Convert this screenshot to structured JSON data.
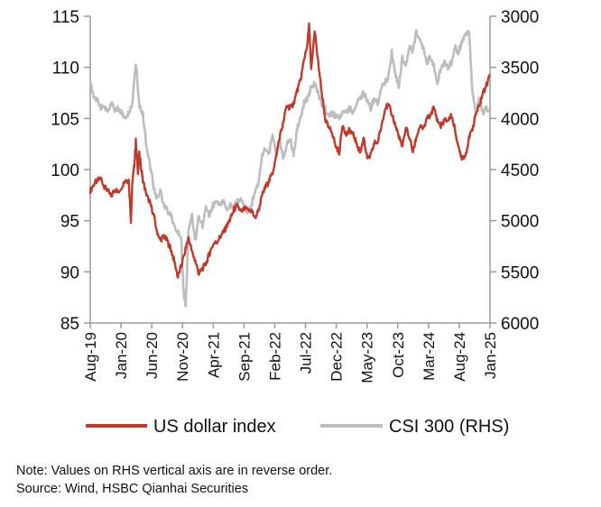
{
  "chart_data": {
    "type": "line",
    "title": "",
    "x_ticks": [
      "Aug-19",
      "Jan-20",
      "Jun-20",
      "Nov-20",
      "Apr-21",
      "Sep-21",
      "Feb-22",
      "Jul-22",
      "Dec-22",
      "May-23",
      "Oct-23",
      "Mar-24",
      "Aug-24",
      "Jan-25"
    ],
    "y_left": {
      "min": 85,
      "max": 115,
      "ticks": [
        85,
        90,
        95,
        100,
        105,
        110,
        115
      ]
    },
    "y_right": {
      "min": 3000,
      "max": 6000,
      "reversed": true,
      "ticks": [
        3000,
        3500,
        4000,
        4500,
        5000,
        5500,
        6000
      ]
    },
    "series": [
      {
        "name": "US dollar index",
        "axis": "left",
        "color": "#c0392b",
        "points": [
          [
            0,
            97.9
          ],
          [
            0.5,
            98.6
          ],
          [
            1,
            98.9
          ],
          [
            1.5,
            99.2
          ],
          [
            2,
            98.3
          ],
          [
            2.5,
            97.9
          ],
          [
            3,
            97.4
          ],
          [
            3.5,
            98.1
          ],
          [
            4,
            97.8
          ],
          [
            4.5,
            98.4
          ],
          [
            5,
            99.0
          ],
          [
            5.5,
            98.9
          ],
          [
            5.8,
            95.0
          ],
          [
            6,
            98.8
          ],
          [
            6.3,
            100.5
          ],
          [
            6.5,
            102.8
          ],
          [
            6.8,
            99.8
          ],
          [
            7,
            101.5
          ],
          [
            7.3,
            100.0
          ],
          [
            7.5,
            99.0
          ],
          [
            8,
            97.5
          ],
          [
            8.5,
            96.8
          ],
          [
            9,
            95.7
          ],
          [
            9.5,
            94.0
          ],
          [
            10,
            93.1
          ],
          [
            10.5,
            93.5
          ],
          [
            11,
            93.0
          ],
          [
            11.5,
            92.2
          ],
          [
            12,
            91.0
          ],
          [
            12.5,
            89.5
          ],
          [
            13,
            90.6
          ],
          [
            13.5,
            92.0
          ],
          [
            14,
            93.4
          ],
          [
            14.5,
            92.0
          ],
          [
            15,
            91.0
          ],
          [
            15.5,
            89.8
          ],
          [
            16,
            90.3
          ],
          [
            16.5,
            90.8
          ],
          [
            17,
            91.8
          ],
          [
            17.5,
            92.7
          ],
          [
            18,
            92.9
          ],
          [
            18.5,
            93.4
          ],
          [
            19,
            93.9
          ],
          [
            19.5,
            94.5
          ],
          [
            20,
            95.2
          ],
          [
            20.5,
            96.1
          ],
          [
            21,
            96.5
          ],
          [
            21.5,
            95.8
          ],
          [
            22,
            96.2
          ],
          [
            22.5,
            96.0
          ],
          [
            23,
            96.0
          ],
          [
            23.5,
            95.3
          ],
          [
            24,
            96.0
          ],
          [
            24.5,
            97.5
          ],
          [
            25,
            98.3
          ],
          [
            25.5,
            98.9
          ],
          [
            26,
            99.7
          ],
          [
            26.5,
            101.3
          ],
          [
            27,
            103.2
          ],
          [
            27.5,
            104.5
          ],
          [
            28,
            106.3
          ],
          [
            28.5,
            106.0
          ],
          [
            29,
            106.5
          ],
          [
            29.5,
            107.7
          ],
          [
            30,
            108.8
          ],
          [
            30.5,
            110.8
          ],
          [
            31,
            112.5
          ],
          [
            31.2,
            114.2
          ],
          [
            31.5,
            109.8
          ],
          [
            32,
            113.5
          ],
          [
            32.5,
            110.5
          ],
          [
            33,
            107.5
          ],
          [
            33.5,
            104.9
          ],
          [
            34,
            104.1
          ],
          [
            34.5,
            103.6
          ],
          [
            35,
            102.3
          ],
          [
            35.5,
            101.7
          ],
          [
            36,
            104.5
          ],
          [
            36.5,
            103.4
          ],
          [
            37,
            103.9
          ],
          [
            37.5,
            103.4
          ],
          [
            38,
            102.6
          ],
          [
            38.5,
            101.6
          ],
          [
            39,
            103.2
          ],
          [
            39.5,
            101.0
          ],
          [
            40,
            101.4
          ],
          [
            40.5,
            102.6
          ],
          [
            41,
            102.7
          ],
          [
            41.5,
            104.2
          ],
          [
            42,
            106.0
          ],
          [
            42.5,
            106.3
          ],
          [
            43,
            105.5
          ],
          [
            43.5,
            104.3
          ],
          [
            44,
            103.3
          ],
          [
            44.5,
            102.1
          ],
          [
            45,
            104.2
          ],
          [
            45.5,
            103.2
          ],
          [
            46,
            101.7
          ],
          [
            46.5,
            103.2
          ],
          [
            47,
            104.2
          ],
          [
            47.5,
            103.9
          ],
          [
            48,
            104.9
          ],
          [
            48.5,
            105.4
          ],
          [
            49,
            106.1
          ],
          [
            49.5,
            104.8
          ],
          [
            50,
            104.3
          ],
          [
            50.5,
            104.8
          ],
          [
            51,
            104.8
          ],
          [
            51.5,
            105.3
          ],
          [
            52,
            104.0
          ],
          [
            52.5,
            102.1
          ],
          [
            53,
            101.2
          ],
          [
            53.5,
            101.4
          ],
          [
            54,
            103.0
          ],
          [
            54.5,
            104.0
          ],
          [
            55,
            105.5
          ],
          [
            55.5,
            106.3
          ],
          [
            56,
            107.5
          ],
          [
            56.5,
            108.3
          ],
          [
            57,
            109.3
          ]
        ]
      },
      {
        "name": "CSI 300 (RHS)",
        "axis": "right",
        "color": "#bdbdbd",
        "points": [
          [
            0,
            3650
          ],
          [
            0.5,
            3800
          ],
          [
            1,
            3820
          ],
          [
            1.5,
            3900
          ],
          [
            2,
            3880
          ],
          [
            2.5,
            3930
          ],
          [
            3,
            3850
          ],
          [
            3.5,
            3920
          ],
          [
            4,
            3900
          ],
          [
            4.5,
            3950
          ],
          [
            5,
            3990
          ],
          [
            5.5,
            3950
          ],
          [
            6,
            3850
          ],
          [
            6.5,
            3450
          ],
          [
            7,
            3880
          ],
          [
            7.5,
            3950
          ],
          [
            8,
            4250
          ],
          [
            8.5,
            4450
          ],
          [
            9,
            4650
          ],
          [
            9.5,
            4800
          ],
          [
            10,
            4700
          ],
          [
            10.5,
            4850
          ],
          [
            11,
            4900
          ],
          [
            11.5,
            4950
          ],
          [
            12,
            5050
          ],
          [
            12.5,
            5100
          ],
          [
            13,
            5200
          ],
          [
            13.3,
            5700
          ],
          [
            13.6,
            5840
          ],
          [
            14,
            5100
          ],
          [
            14.5,
            4950
          ],
          [
            15,
            5200
          ],
          [
            15.5,
            4950
          ],
          [
            16,
            5050
          ],
          [
            16.5,
            4880
          ],
          [
            17,
            4950
          ],
          [
            17.5,
            4850
          ],
          [
            18,
            4820
          ],
          [
            18.5,
            4850
          ],
          [
            19,
            4800
          ],
          [
            19.5,
            4900
          ],
          [
            20,
            4850
          ],
          [
            20.5,
            4850
          ],
          [
            21,
            4800
          ],
          [
            21.5,
            4800
          ],
          [
            22,
            4880
          ],
          [
            22.5,
            4920
          ],
          [
            23,
            4850
          ],
          [
            23.5,
            4700
          ],
          [
            24,
            4650
          ],
          [
            24.5,
            4350
          ],
          [
            25,
            4300
          ],
          [
            25.5,
            4350
          ],
          [
            26,
            4150
          ],
          [
            26.5,
            4350
          ],
          [
            27,
            4200
          ],
          [
            27.5,
            4400
          ],
          [
            28,
            4250
          ],
          [
            28.5,
            4200
          ],
          [
            29,
            4350
          ],
          [
            29.5,
            4100
          ],
          [
            30,
            4000
          ],
          [
            30.5,
            3850
          ],
          [
            31,
            3800
          ],
          [
            31.5,
            3700
          ],
          [
            32,
            3650
          ],
          [
            32.5,
            3750
          ],
          [
            33,
            3850
          ],
          [
            33.5,
            3900
          ],
          [
            34,
            3980
          ],
          [
            34.5,
            3950
          ],
          [
            35,
            3980
          ],
          [
            35.5,
            4000
          ],
          [
            36,
            3950
          ],
          [
            36.5,
            3950
          ],
          [
            37,
            3900
          ],
          [
            37.5,
            3950
          ],
          [
            38,
            3850
          ],
          [
            38.5,
            3800
          ],
          [
            39,
            3750
          ],
          [
            39.5,
            3820
          ],
          [
            40,
            3900
          ],
          [
            40.5,
            3800
          ],
          [
            41,
            3850
          ],
          [
            41.5,
            3700
          ],
          [
            42,
            3650
          ],
          [
            42.5,
            3600
          ],
          [
            43,
            3350
          ],
          [
            43.5,
            3550
          ],
          [
            44,
            3700
          ],
          [
            44.5,
            3400
          ],
          [
            45,
            3500
          ],
          [
            45.5,
            3300
          ],
          [
            46,
            3350
          ],
          [
            46.5,
            3150
          ],
          [
            47,
            3250
          ],
          [
            47.5,
            3300
          ],
          [
            48,
            3450
          ],
          [
            48.5,
            3400
          ],
          [
            49,
            3500
          ],
          [
            49.5,
            3650
          ],
          [
            50,
            3500
          ],
          [
            50.5,
            3450
          ],
          [
            51,
            3500
          ],
          [
            51.5,
            3450
          ],
          [
            52,
            3300
          ],
          [
            52.5,
            3350
          ],
          [
            53,
            3250
          ],
          [
            53.5,
            3180
          ],
          [
            54,
            3150
          ],
          [
            54.5,
            3730
          ],
          [
            55,
            3950
          ],
          [
            55.5,
            3800
          ],
          [
            56,
            3950
          ],
          [
            56.5,
            3900
          ],
          [
            57,
            3930
          ]
        ]
      }
    ],
    "legend": [
      "US dollar index",
      "CSI 300 (RHS)"
    ],
    "legend_position": "bottom"
  },
  "notes": {
    "note": "Note: Values on RHS vertical axis are in reverse order.",
    "source": "Source: Wind, HSBC Qianhai Securities"
  }
}
